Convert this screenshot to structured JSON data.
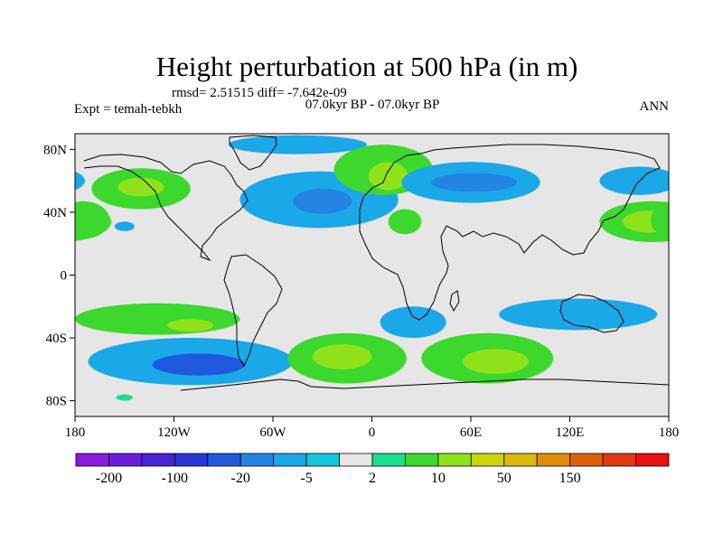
{
  "chart_data": {
    "type": "heatmap",
    "title": "Height perturbation at 500 hPa (in m)",
    "stats_text": "rmsd= 2.51515 diff= -7.642e-09",
    "left_label": "Expt = temah-tebkh",
    "center_label": "07.0kyr BP - 07.0kyr BP",
    "right_label": "ANN",
    "lon_range": [
      -180,
      180
    ],
    "lat_range": [
      -90,
      90
    ],
    "x_ticks": [
      {
        "value": -180,
        "label": "180"
      },
      {
        "value": -120,
        "label": "120W"
      },
      {
        "value": -60,
        "label": "60W"
      },
      {
        "value": 0,
        "label": "0"
      },
      {
        "value": 60,
        "label": "60E"
      },
      {
        "value": 120,
        "label": "120E"
      },
      {
        "value": 180,
        "label": "180"
      }
    ],
    "y_ticks": [
      {
        "value": 80,
        "label": "80N"
      },
      {
        "value": 40,
        "label": "40N"
      },
      {
        "value": 0,
        "label": "0"
      },
      {
        "value": -40,
        "label": "40S"
      },
      {
        "value": -80,
        "label": "80S"
      }
    ],
    "colorbar": {
      "colors": [
        "#8b1adf",
        "#6a1ddc",
        "#4a22d8",
        "#2a35d6",
        "#1f5ade",
        "#2385e2",
        "#1aa8e8",
        "#12c7de",
        "#e6e6e6",
        "#18e08f",
        "#3cd82e",
        "#8fe21a",
        "#c9d60e",
        "#dcb80a",
        "#e08c08",
        "#e0600a",
        "#e3380f",
        "#e81212"
      ],
      "labels": [
        {
          "after_index": 0,
          "text": "-200"
        },
        {
          "after_index": 2,
          "text": "-100"
        },
        {
          "after_index": 4,
          "text": "-20"
        },
        {
          "after_index": 6,
          "text": "-5"
        },
        {
          "after_index": 8,
          "text": "2"
        },
        {
          "after_index": 10,
          "text": "10"
        },
        {
          "after_index": 12,
          "text": "50"
        },
        {
          "after_index": 14,
          "text": "150"
        }
      ]
    },
    "anomalies": [
      {
        "name": "north-atlantic-cyclonic",
        "lon": -32,
        "lat": 48,
        "dlon": 48,
        "dlat": 18,
        "value": -10
      },
      {
        "name": "north-atlantic-core",
        "lon": -30,
        "lat": 47,
        "dlon": 18,
        "dlat": 8,
        "value": -20
      },
      {
        "name": "greenland-negative",
        "lon": -45,
        "lat": 83,
        "dlon": 42,
        "dlat": 6,
        "value": -10
      },
      {
        "name": "scandinavia-positive",
        "lon": 7,
        "lat": 67,
        "dlon": 30,
        "dlat": 16,
        "value": 5
      },
      {
        "name": "scandinavia-core",
        "lon": 10,
        "lat": 63,
        "dlon": 12,
        "dlat": 9,
        "value": 12
      },
      {
        "name": "mediterranean-small",
        "lon": 20,
        "lat": 34,
        "dlon": 10,
        "dlat": 8,
        "value": 8
      },
      {
        "name": "north-pacific-positive",
        "lon": -140,
        "lat": 55,
        "dlon": 30,
        "dlat": 13,
        "value": 8
      },
      {
        "name": "north-pacific-core",
        "lon": -140,
        "lat": 56,
        "dlon": 14,
        "dlat": 6,
        "value": 12
      },
      {
        "name": "small-pacific-negative",
        "lon": -150,
        "lat": 31,
        "dlon": 6,
        "dlat": 3,
        "value": -6
      },
      {
        "name": "siberia-negative",
        "lon": 60,
        "lat": 59,
        "dlon": 42,
        "dlat": 13,
        "value": -8
      },
      {
        "name": "siberia-core",
        "lon": 62,
        "lat": 59,
        "dlon": 26,
        "dlat": 6,
        "value": -15
      },
      {
        "name": "east-asia-negative",
        "lon": 162,
        "lat": 60,
        "dlon": 24,
        "dlat": 9,
        "value": -6
      },
      {
        "name": "west-pacific-positive",
        "lon": 170,
        "lat": 34,
        "dlon": 32,
        "dlat": 13,
        "value": 8
      },
      {
        "name": "west-pacific-core",
        "lon": 168,
        "lat": 34,
        "dlon": 16,
        "dlat": 7,
        "value": 12
      },
      {
        "name": "date-line-positive",
        "lon": -175,
        "lat": 35,
        "dlon": 16,
        "dlat": 12,
        "value": 8
      },
      {
        "name": "south-pacific-band",
        "lon": -130,
        "lat": -28,
        "dlon": 50,
        "dlat": 10,
        "value": 5
      },
      {
        "name": "south-pacific-core",
        "lon": -110,
        "lat": -32,
        "dlon": 14,
        "dlat": 4,
        "value": 12
      },
      {
        "name": "southern-pacific-negative",
        "lon": -110,
        "lat": -55,
        "dlon": 62,
        "dlat": 15,
        "value": -10
      },
      {
        "name": "southern-pacific-core",
        "lon": -105,
        "lat": -57,
        "dlon": 28,
        "dlat": 7,
        "value": -25
      },
      {
        "name": "south-atlantic-positive",
        "lon": -15,
        "lat": -53,
        "dlon": 36,
        "dlat": 16,
        "value": 6
      },
      {
        "name": "south-atlantic-core",
        "lon": -18,
        "lat": -52,
        "dlon": 18,
        "dlat": 8,
        "value": 12
      },
      {
        "name": "south-africa-negative",
        "lon": 25,
        "lat": -30,
        "dlon": 20,
        "dlat": 10,
        "value": -6
      },
      {
        "name": "indian-ocean-positive",
        "lon": 70,
        "lat": -53,
        "dlon": 40,
        "dlat": 16,
        "value": 6
      },
      {
        "name": "indian-ocean-core",
        "lon": 75,
        "lat": -55,
        "dlon": 20,
        "dlat": 8,
        "value": 12
      },
      {
        "name": "australia-negative",
        "lon": 125,
        "lat": -25,
        "dlon": 48,
        "dlat": 10,
        "value": -6
      },
      {
        "name": "antarctic-small",
        "lon": -150,
        "lat": -78,
        "dlon": 5,
        "dlat": 2,
        "value": 4
      }
    ]
  }
}
